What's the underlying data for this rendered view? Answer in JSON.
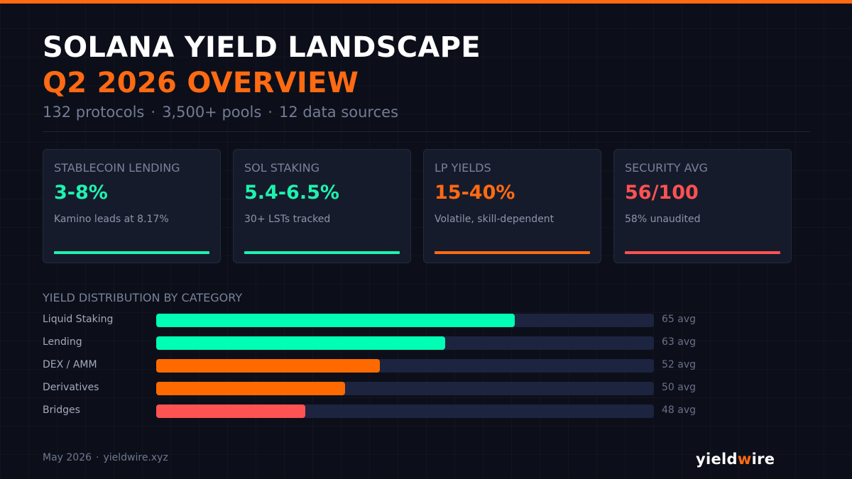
{
  "header": {
    "title": "SOLANA YIELD LANDSCAPE",
    "subtitle": "Q2 2026 OVERVIEW",
    "stats": [
      "132 protocols",
      "3,500+ pools",
      "12 data sources"
    ],
    "separator": "·"
  },
  "cards": [
    {
      "label": "STABLECOIN LENDING",
      "value": "3-8%",
      "note": "Kamino leads at 8.17%",
      "color": "#1ef2b0"
    },
    {
      "label": "SOL STAKING",
      "value": "5.4-6.5%",
      "note": "30+ LSTs tracked",
      "color": "#1ef2b0"
    },
    {
      "label": "LP YIELDS",
      "value": "15-40%",
      "note": "Volatile, skill-dependent",
      "color": "#ff6a13"
    },
    {
      "label": "SECURITY AVG",
      "value": "56/100",
      "note": "58% unaudited",
      "color": "#ff5252"
    }
  ],
  "chart_data": {
    "type": "bar",
    "orientation": "horizontal",
    "title": "YIELD DISTRIBUTION BY CATEGORY",
    "categories": [
      "Liquid Staking",
      "Lending",
      "DEX / AMM",
      "Derivatives",
      "Bridges"
    ],
    "values": [
      65,
      63,
      52,
      50,
      48
    ],
    "value_labels": [
      "65 avg",
      "63 avg",
      "52 avg",
      "50 avg",
      "48 avg"
    ],
    "fill_fraction": [
      0.72,
      0.58,
      0.45,
      0.38,
      0.3
    ],
    "colors": [
      "#00ffb4",
      "#00ffb4",
      "#ff6a00",
      "#ff6a00",
      "#ff5252"
    ]
  },
  "footer": {
    "date": "May 2026",
    "separator": "·",
    "site": "yieldwire.xyz",
    "brand_prefix": "yield",
    "brand_accent": "w",
    "brand_suffix": "ire"
  }
}
